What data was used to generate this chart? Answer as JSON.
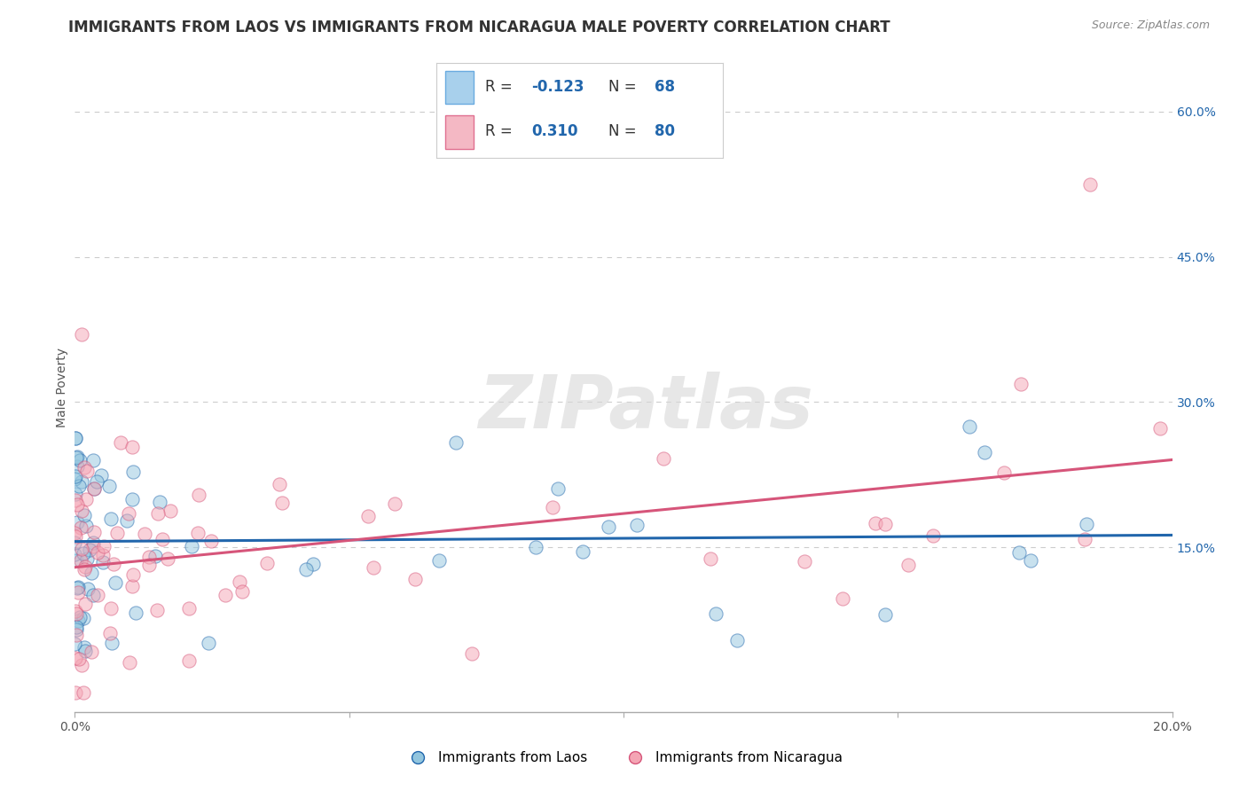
{
  "title": "IMMIGRANTS FROM LAOS VS IMMIGRANTS FROM NICARAGUA MALE POVERTY CORRELATION CHART",
  "source": "Source: ZipAtlas.com",
  "ylabel": "Male Poverty",
  "xlim": [
    0.0,
    0.2
  ],
  "ylim": [
    -0.02,
    0.65
  ],
  "ytick_vals": [
    0.15,
    0.3,
    0.45,
    0.6
  ],
  "ytick_labels": [
    "15.0%",
    "30.0%",
    "45.0%",
    "60.0%"
  ],
  "xtick_positions": [
    0.0,
    0.05,
    0.1,
    0.15,
    0.2
  ],
  "xtick_labels": [
    "0.0%",
    "",
    "",
    "",
    "20.0%"
  ],
  "laos_color": "#92c5de",
  "laos_line_color": "#2166ac",
  "nicaragua_color": "#f4a5b4",
  "nicaragua_line_color": "#d6557a",
  "laos_R": -0.123,
  "laos_N": 68,
  "nicaragua_R": 0.31,
  "nicaragua_N": 80,
  "watermark_text": "ZIPatlas",
  "background_color": "#ffffff",
  "grid_color": "#cccccc",
  "title_fontsize": 12,
  "source_fontsize": 9,
  "label_fontsize": 10,
  "tick_fontsize": 10,
  "legend_label_laos": "Immigrants from Laos",
  "legend_label_nicaragua": "Immigrants from Nicaragua",
  "legend_R_color": "#2166ac",
  "legend_N_color": "#2166ac"
}
